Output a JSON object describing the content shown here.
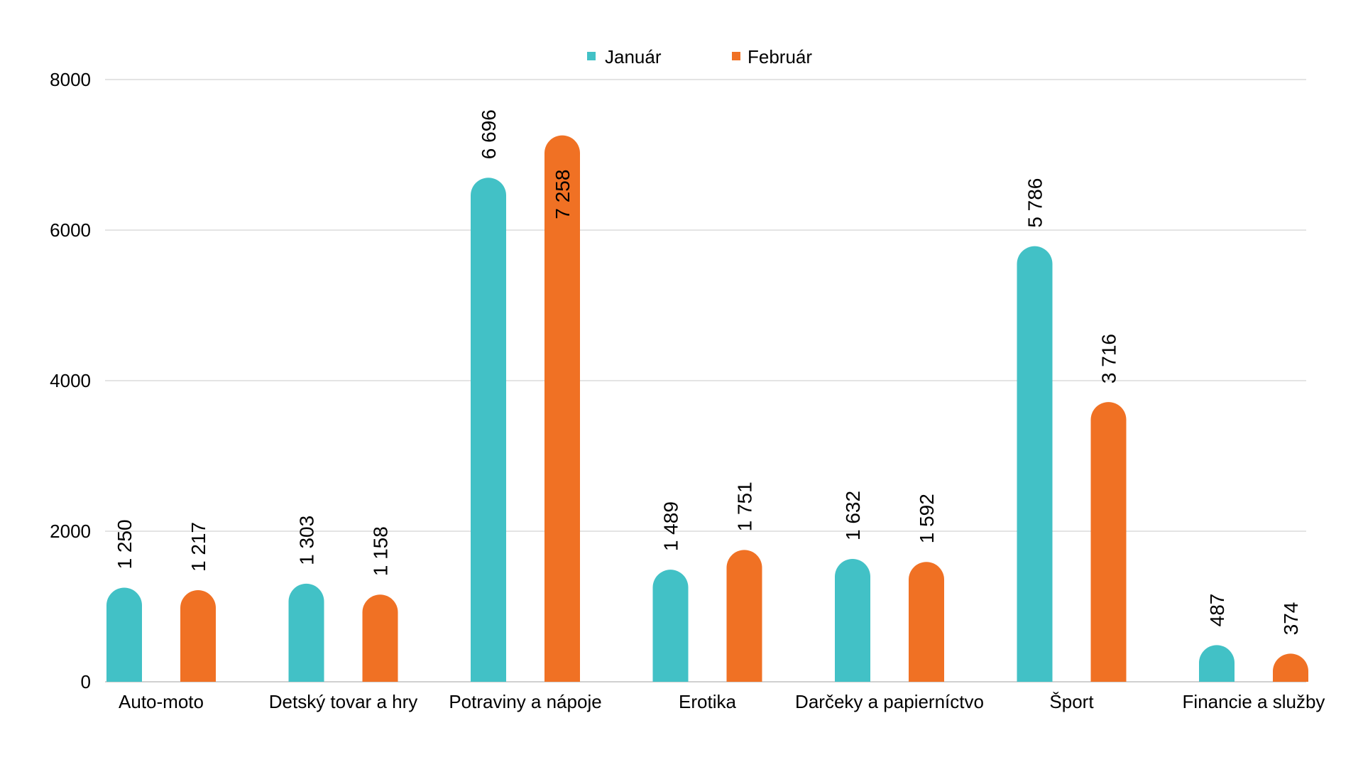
{
  "chart_data": {
    "type": "bar",
    "categories": [
      "Auto-moto",
      "Detský tovar a hry",
      "Potraviny a nápoje",
      "Erotika",
      "Darčeky a papierníctvo",
      "Šport",
      "Financie a služby"
    ],
    "series": [
      {
        "name": "Január",
        "color": "#42c1c6",
        "values": [
          1250,
          1303,
          6696,
          1489,
          1632,
          5786,
          487
        ],
        "labels": [
          "1 250",
          "1 303",
          "6 696",
          "1 489",
          "1 632",
          "5 786",
          "487"
        ]
      },
      {
        "name": "Február",
        "color": "#f07124",
        "values": [
          1217,
          1158,
          7258,
          1751,
          1592,
          3716,
          374
        ],
        "labels": [
          "1 217",
          "1 158",
          "7 258",
          "1 751",
          "1 592",
          "3 716",
          "374"
        ]
      }
    ],
    "yticks": [
      "0",
      "2000",
      "4000",
      "6000",
      "8000"
    ],
    "ylim": [
      0,
      8000
    ],
    "grid": true,
    "legend_position": "top-center",
    "bar_style": "rounded-top"
  }
}
